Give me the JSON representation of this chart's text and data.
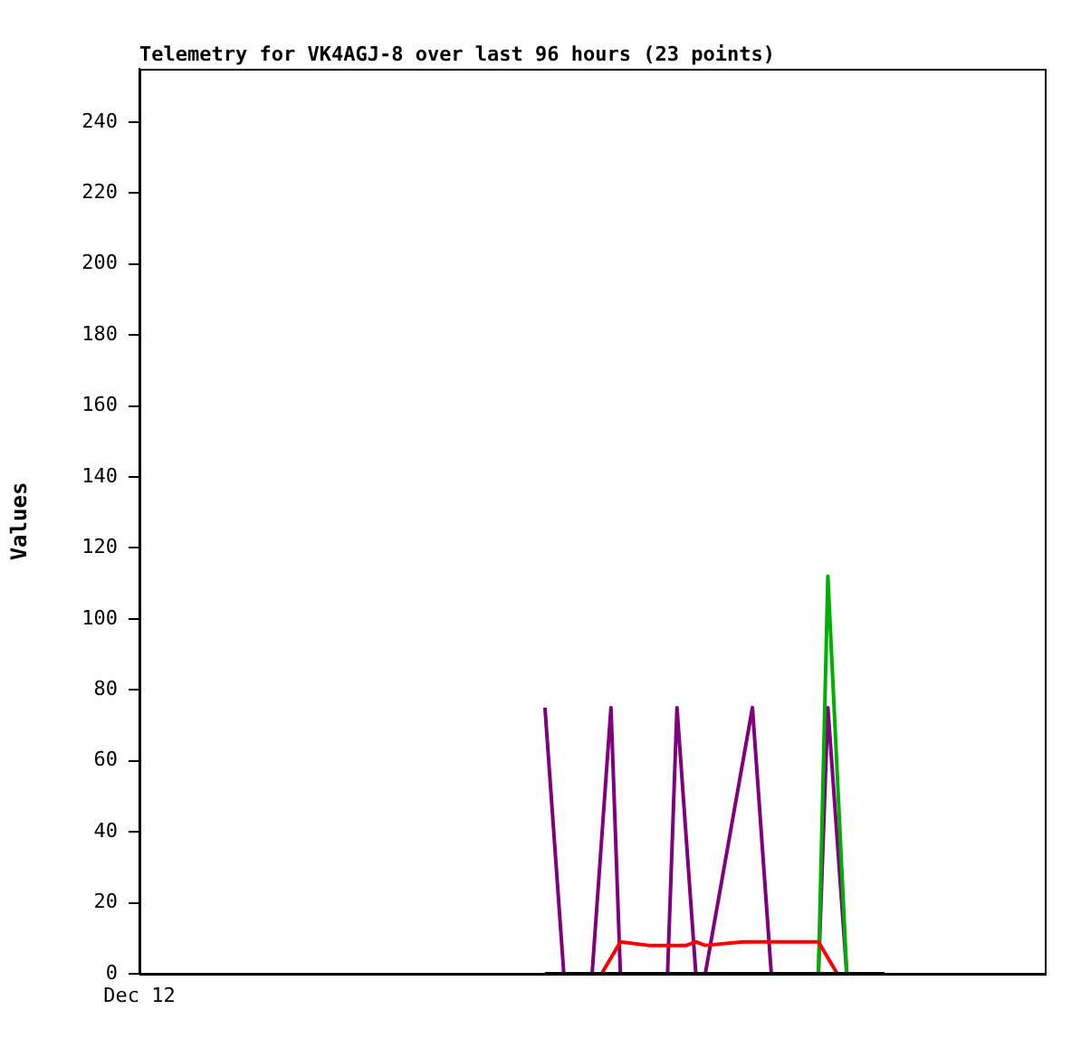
{
  "chart_data": {
    "type": "line",
    "title": "Telemetry for VK4AGJ-8 over last 96 hours (23 points)",
    "ylabel": "Values",
    "categories": [
      "Dec 12",
      null,
      null,
      null,
      null,
      null,
      null,
      null,
      null,
      null,
      null,
      null,
      null,
      null,
      null,
      null,
      null,
      null,
      null,
      null,
      null,
      null,
      null,
      null,
      null,
      null,
      null,
      null,
      null,
      null,
      null,
      null,
      null,
      null,
      null,
      null,
      null,
      null,
      null,
      null,
      null,
      null,
      null,
      null,
      null,
      null,
      null,
      null,
      null,
      null,
      null,
      null,
      null,
      null,
      null,
      null,
      null,
      null,
      null,
      null,
      null,
      null,
      null,
      null,
      null,
      null,
      null,
      null,
      null,
      null,
      null,
      null,
      null,
      null,
      null,
      null,
      null,
      null,
      null,
      null,
      null,
      null,
      null,
      null,
      null,
      null,
      null,
      null,
      null,
      null,
      null,
      null,
      null,
      null,
      null,
      null,
      null
    ],
    "ylim": [
      0,
      255
    ],
    "yticks": [
      0,
      20,
      40,
      60,
      80,
      100,
      120,
      140,
      160,
      180,
      200,
      220,
      240
    ],
    "grid": false,
    "legend": false,
    "marker": "none",
    "line_style": "solid",
    "series": [
      {
        "color": "#000000",
        "values": [
          null,
          null,
          null,
          null,
          null,
          null,
          null,
          null,
          null,
          null,
          null,
          null,
          null,
          null,
          null,
          null,
          null,
          null,
          null,
          null,
          null,
          null,
          null,
          null,
          null,
          null,
          null,
          null,
          null,
          null,
          null,
          null,
          null,
          null,
          null,
          null,
          null,
          null,
          null,
          null,
          null,
          null,
          null,
          0,
          null,
          null,
          null,
          null,
          null,
          null,
          null,
          null,
          null,
          null,
          null,
          null,
          null,
          null,
          null,
          null,
          null,
          null,
          null,
          null,
          null,
          null,
          null,
          null,
          null,
          null,
          null,
          null,
          null,
          null,
          null,
          null,
          null,
          null,
          null,
          0,
          null,
          null,
          null,
          null,
          null,
          null,
          null,
          null,
          null,
          null,
          null,
          null,
          null,
          null,
          null,
          null,
          null
        ]
      },
      {
        "color": "#ff0000",
        "values": [
          null,
          null,
          null,
          null,
          null,
          null,
          null,
          null,
          null,
          null,
          null,
          null,
          null,
          null,
          null,
          null,
          null,
          null,
          null,
          null,
          null,
          null,
          null,
          null,
          null,
          null,
          null,
          null,
          null,
          null,
          null,
          null,
          null,
          null,
          null,
          null,
          null,
          null,
          null,
          null,
          null,
          null,
          null,
          null,
          null,
          null,
          null,
          null,
          null,
          0,
          null,
          9,
          null,
          null,
          8,
          null,
          null,
          null,
          8,
          9,
          8,
          null,
          null,
          null,
          9,
          null,
          null,
          null,
          null,
          null,
          null,
          null,
          9,
          null,
          0,
          null,
          null,
          null,
          null,
          null,
          null,
          null,
          null,
          null,
          null,
          null,
          null,
          null,
          null,
          null,
          null,
          null,
          null,
          null,
          null,
          null,
          null
        ]
      },
      {
        "color": "#00b000",
        "values": [
          null,
          null,
          null,
          null,
          null,
          null,
          null,
          null,
          null,
          null,
          null,
          null,
          null,
          null,
          null,
          null,
          null,
          null,
          null,
          null,
          null,
          null,
          null,
          null,
          null,
          null,
          null,
          null,
          null,
          null,
          null,
          null,
          null,
          null,
          null,
          null,
          null,
          null,
          null,
          null,
          null,
          null,
          null,
          null,
          null,
          null,
          null,
          null,
          null,
          null,
          null,
          null,
          null,
          null,
          null,
          null,
          null,
          null,
          null,
          null,
          null,
          null,
          null,
          null,
          null,
          null,
          null,
          null,
          null,
          null,
          null,
          null,
          0,
          112,
          null,
          0,
          null,
          null,
          null,
          null,
          null,
          null,
          null,
          null,
          null,
          null,
          null,
          null,
          null,
          null,
          null,
          null,
          null,
          null,
          null,
          null,
          null
        ]
      },
      {
        "color": "#800080",
        "values": [
          null,
          null,
          null,
          null,
          null,
          null,
          null,
          null,
          null,
          null,
          null,
          null,
          null,
          null,
          null,
          null,
          null,
          null,
          null,
          null,
          null,
          null,
          null,
          null,
          null,
          null,
          null,
          null,
          null,
          null,
          null,
          null,
          null,
          null,
          null,
          null,
          null,
          null,
          null,
          null,
          null,
          null,
          null,
          75,
          null,
          0,
          null,
          null,
          0,
          null,
          75,
          0,
          null,
          null,
          null,
          null,
          0,
          75,
          null,
          0,
          0,
          null,
          null,
          null,
          null,
          75,
          null,
          0,
          null,
          null,
          null,
          null,
          0,
          75,
          null,
          0,
          null,
          null,
          null,
          null,
          null,
          null,
          null,
          null,
          null,
          null,
          null,
          null,
          null,
          null,
          null,
          null,
          null,
          null,
          null,
          null,
          null
        ]
      }
    ]
  }
}
